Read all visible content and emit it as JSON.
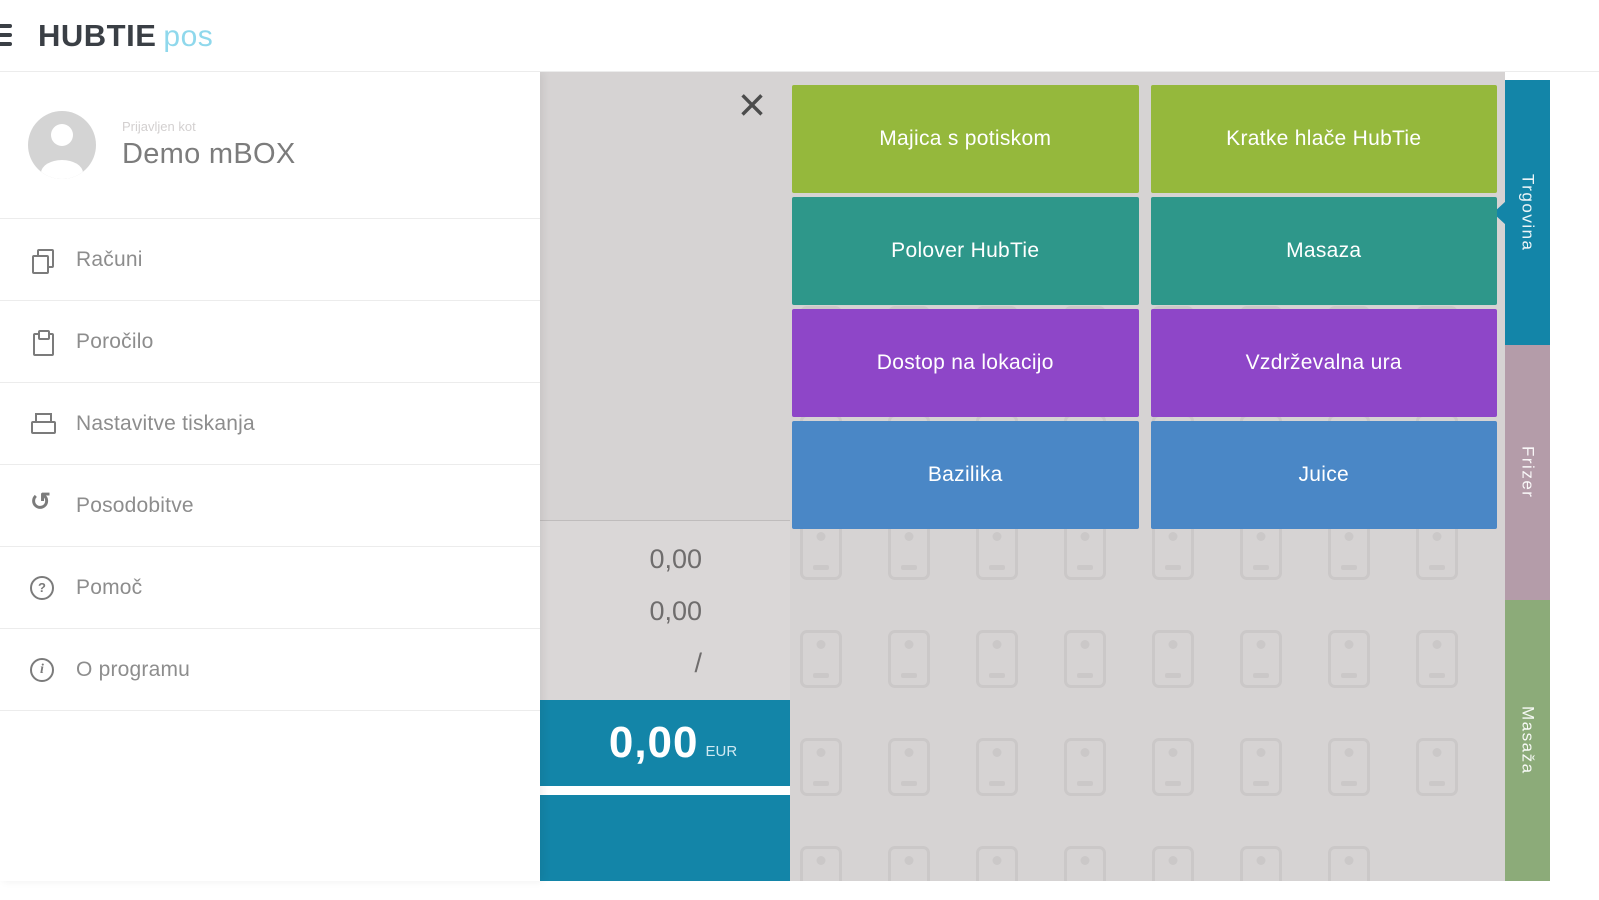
{
  "header": {
    "brand_primary": "HUBTIE",
    "brand_secondary": "pos"
  },
  "sidebar": {
    "logged_in_label": "Prijavljen kot",
    "user_name": "Demo mBOX",
    "items": [
      {
        "label": "Računi",
        "icon": "documents-icon"
      },
      {
        "label": "Poročilo",
        "icon": "clipboard-icon"
      },
      {
        "label": "Nastavitve tiskanja",
        "icon": "printer-icon"
      },
      {
        "label": "Posodobitve",
        "icon": "refresh-icon"
      },
      {
        "label": "Pomoč",
        "icon": "help-icon"
      },
      {
        "label": "O programu",
        "icon": "info-icon"
      }
    ]
  },
  "cart": {
    "close_label": "×",
    "subtotal": "0,00",
    "tax": "0,00",
    "divider": "/",
    "total": "0,00",
    "currency": "EUR"
  },
  "products": [
    {
      "label": "Majica s potiskom",
      "color": "#95b83c"
    },
    {
      "label": "Kratke hlače HubTie",
      "color": "#95b83c"
    },
    {
      "label": "Polover HubTie",
      "color": "#2e978a"
    },
    {
      "label": "Masaza",
      "color": "#2e978a"
    },
    {
      "label": "Dostop na lokacijo",
      "color": "#8e46c8"
    },
    {
      "label": "Vzdrževalna ura",
      "color": "#8e46c8"
    },
    {
      "label": "Bazilika",
      "color": "#4a87c6"
    },
    {
      "label": "Juice",
      "color": "#4a87c6"
    }
  ],
  "categories": [
    {
      "label": "Trgovina",
      "color": "#1385a8",
      "active": true
    },
    {
      "label": "Frizer",
      "color": "#b49ca9",
      "active": false
    },
    {
      "label": "Masaža",
      "color": "#8cab79",
      "active": false
    }
  ],
  "theme": {
    "accent": "#1385a8",
    "surface": "#d6d3d3"
  }
}
